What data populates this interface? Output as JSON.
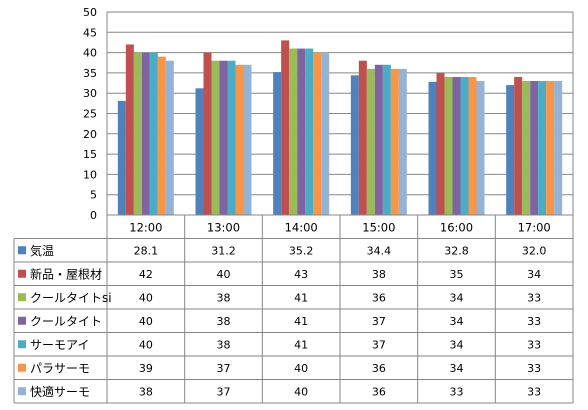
{
  "chart_data": {
    "type": "bar",
    "categories": [
      "12:00",
      "13:00",
      "14:00",
      "15:00",
      "16:00",
      "17:00"
    ],
    "ylim": [
      0,
      50
    ],
    "yticks": [
      0,
      5,
      10,
      15,
      20,
      25,
      30,
      35,
      40,
      45,
      50
    ],
    "grid": true,
    "legend": "data-table-below",
    "series": [
      {
        "name": "気温",
        "color": "#4f81bd",
        "values": [
          28.1,
          31.2,
          35.2,
          34.4,
          32.8,
          32.0
        ],
        "labels": [
          "28.1",
          "31.2",
          "35.2",
          "34.4",
          "32.8",
          "32.0"
        ]
      },
      {
        "name": "新品・屋根材",
        "color": "#c0504d",
        "values": [
          42,
          40,
          43,
          38,
          35,
          34
        ],
        "labels": [
          "42",
          "40",
          "43",
          "38",
          "35",
          "34"
        ]
      },
      {
        "name": "クールタイトsi",
        "color": "#9bbb59",
        "values": [
          40,
          38,
          41,
          36,
          34,
          33
        ],
        "labels": [
          "40",
          "38",
          "41",
          "36",
          "34",
          "33"
        ]
      },
      {
        "name": "クールタイト",
        "color": "#8064a2",
        "values": [
          40,
          38,
          41,
          37,
          34,
          33
        ],
        "labels": [
          "40",
          "38",
          "41",
          "37",
          "34",
          "33"
        ]
      },
      {
        "name": "サーモアイ",
        "color": "#4bacc6",
        "values": [
          40,
          38,
          41,
          37,
          34,
          33
        ],
        "labels": [
          "40",
          "38",
          "41",
          "37",
          "34",
          "33"
        ]
      },
      {
        "name": "パラサーモ",
        "color": "#f79646",
        "values": [
          39,
          37,
          40,
          36,
          34,
          33
        ],
        "labels": [
          "39",
          "37",
          "40",
          "36",
          "34",
          "33"
        ]
      },
      {
        "name": "快適サーモ",
        "color": "#95b3d7",
        "values": [
          38,
          37,
          40,
          36,
          33,
          33
        ],
        "labels": [
          "38",
          "37",
          "40",
          "36",
          "33",
          "33"
        ]
      }
    ]
  }
}
